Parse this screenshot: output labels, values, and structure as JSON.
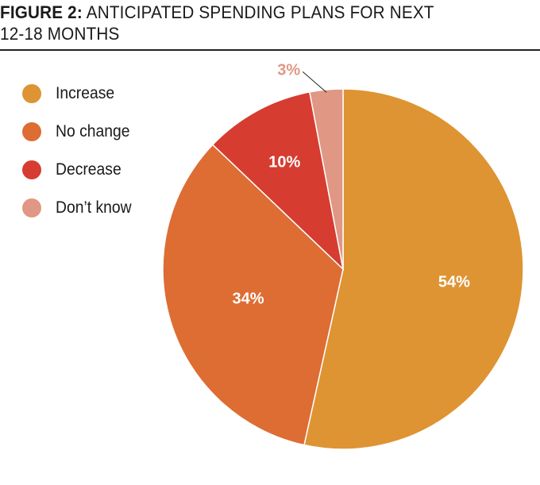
{
  "figure": {
    "prefix": "FIGURE 2:",
    "title_line1": "ANTICIPATED SPENDING PLANS FOR NEXT",
    "title_line2": "12-18 MONTHS"
  },
  "legend": [
    {
      "label": "Increase",
      "color": "#DE9433"
    },
    {
      "label": "No change",
      "color": "#DD6D33"
    },
    {
      "label": "Decrease",
      "color": "#D63C30"
    },
    {
      "label": "Don’t know",
      "color": "#E09784"
    }
  ],
  "chart_data": {
    "type": "pie",
    "title": "ANTICIPATED SPENDING PLANS FOR NEXT 12-18 MONTHS",
    "categories": [
      "Increase",
      "No change",
      "Decrease",
      "Don’t know"
    ],
    "values": [
      54,
      34,
      10,
      3
    ],
    "value_labels": [
      "54%",
      "34%",
      "10%",
      "3%"
    ],
    "colors": [
      "#DE9433",
      "#DD6D33",
      "#D63C30",
      "#E09784"
    ],
    "legend_position": "left",
    "start_angle": "12 o'clock",
    "direction": "clockwise"
  }
}
